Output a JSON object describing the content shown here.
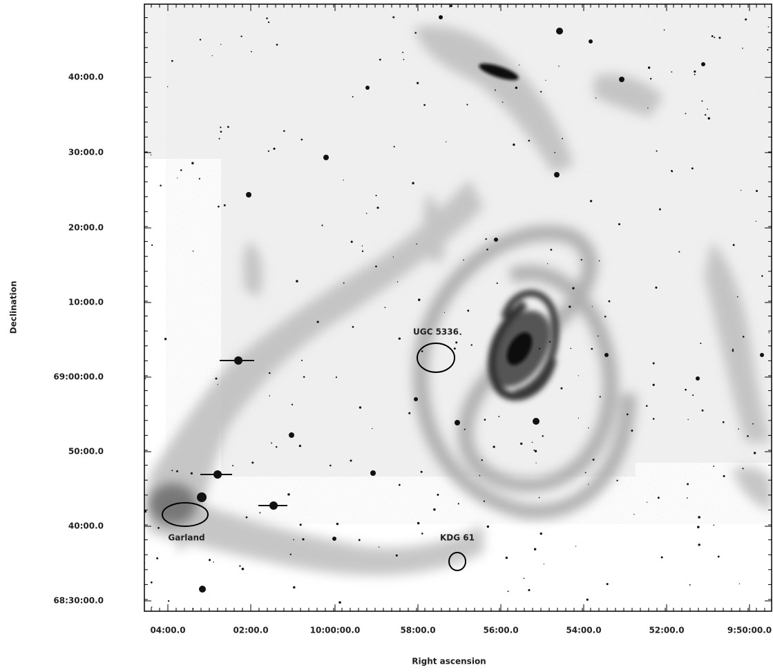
{
  "image": {
    "x_axis": {
      "label": "Right ascension",
      "ticks": [
        "04:00.0",
        "02:00.0",
        "10:00:00.0",
        "58:00.0",
        "56:00.0",
        "54:00.0",
        "52:00.0",
        "9:50:00.0"
      ]
    },
    "y_axis": {
      "label": "Declination",
      "ticks": [
        "40:00.0",
        "30:00.0",
        "20:00.0",
        "10:00.0",
        "69:00:00.0",
        "50:00.0",
        "40:00.0",
        "68:30:00.0"
      ]
    },
    "annotations": [
      "UGC 5336",
      "Garland",
      "KDG 61"
    ]
  }
}
